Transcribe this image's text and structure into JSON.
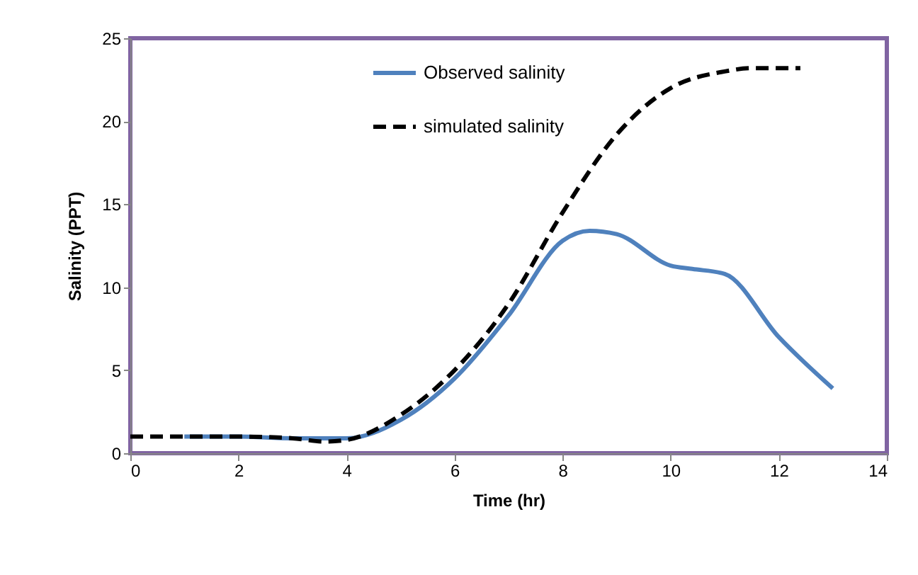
{
  "chart_data": {
    "type": "line",
    "xlabel": "Time (hr)",
    "ylabel": "Salinity (PPT)",
    "xlim": [
      0,
      14
    ],
    "xticks": [
      0,
      2,
      4,
      6,
      8,
      10,
      12,
      14
    ],
    "ylim": [
      0,
      25
    ],
    "yticks": [
      0,
      5,
      10,
      15,
      20,
      25
    ],
    "grid": false,
    "legend": "top",
    "marker": "none",
    "series": [
      {
        "name": "Observed salinity",
        "color": "#4f81bd",
        "line_style": "solid",
        "x": [
          1,
          2,
          3,
          4,
          5,
          6,
          7,
          8,
          8.5,
          9,
          10,
          10.4,
          11,
          12,
          13
        ],
        "values": [
          1.0,
          1.0,
          0.9,
          0.9,
          2,
          4.5,
          8.3,
          12.8,
          13.4,
          13.2,
          11.3,
          11.1,
          10.8,
          7,
          3.9
        ]
      },
      {
        "name": "simulated salinity",
        "color": "#000000",
        "line_style": "dashed",
        "x": [
          0,
          1,
          2,
          3,
          3.6,
          4,
          5,
          6,
          7,
          8,
          9,
          10,
          11,
          11.5,
          12.4
        ],
        "values": [
          1,
          1,
          1,
          0.9,
          0.7,
          0.8,
          2.3,
          5,
          9,
          14.5,
          19.2,
          22,
          23,
          23.2,
          23.2
        ]
      }
    ]
  }
}
